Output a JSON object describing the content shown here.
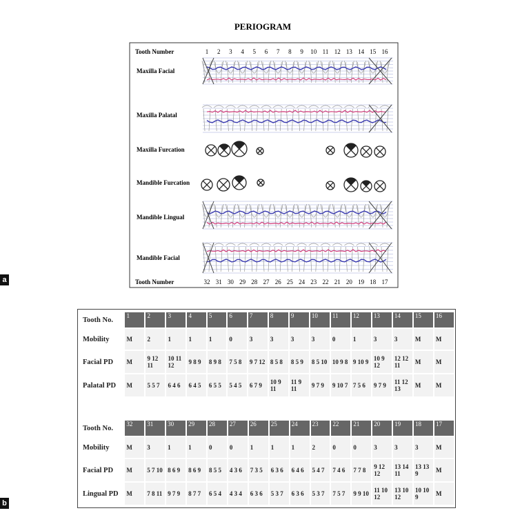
{
  "figure": {
    "label_a": "a",
    "label_b": "b"
  },
  "periogram": {
    "title": "PERIOGRAM",
    "top_label": "Tooth Number",
    "bottom_label": "Tooth Number",
    "upper_teeth": [
      "1",
      "2",
      "3",
      "4",
      "5",
      "6",
      "7",
      "8",
      "9",
      "10",
      "11",
      "12",
      "13",
      "14",
      "15",
      "16"
    ],
    "lower_teeth": [
      "32",
      "31",
      "30",
      "29",
      "28",
      "27",
      "26",
      "25",
      "24",
      "23",
      "22",
      "21",
      "20",
      "19",
      "18",
      "17"
    ],
    "rows": [
      "Maxilla Facial",
      "Maxilla Palatal",
      "Maxilla Furcation",
      "Mandible Furcation",
      "Mandible Lingual",
      "Mandible Facial"
    ]
  },
  "tables": [
    {
      "header_label": "Tooth No.",
      "teeth": [
        "1",
        "2",
        "3",
        "4",
        "5",
        "6",
        "7",
        "8",
        "9",
        "10",
        "11",
        "12",
        "13",
        "14",
        "15",
        "16"
      ],
      "rows": [
        {
          "label": "Mobility",
          "cells": [
            "M",
            "2",
            "1",
            "1",
            "1",
            "0",
            "3",
            "3",
            "3",
            "3",
            "0",
            "1",
            "3",
            "3",
            "M",
            "M"
          ]
        },
        {
          "label": "Facial PD",
          "cells": [
            "M",
            "9 12 11",
            "10 11 12",
            "9 8 9",
            "8 9 8",
            "7 5 8",
            "9 7 12",
            "8 5 8",
            "8 5 9",
            "8 5 10",
            "10 9 8",
            "9 10 9",
            "10 9 12",
            "12 12 11",
            "M",
            "M"
          ]
        },
        {
          "label": "Palatal PD",
          "cells": [
            "M",
            "5 5 7",
            "6 4 6",
            "6 4 5",
            "6 5 5",
            "5 4 5",
            "6 7 9",
            "10 9 11",
            "11 9 11",
            "9 7 9",
            "9 10 7",
            "7 5 6",
            "9 7 9",
            "11 12 13",
            "M",
            "M"
          ]
        }
      ]
    },
    {
      "header_label": "Tooth No.",
      "teeth": [
        "32",
        "31",
        "30",
        "29",
        "28",
        "27",
        "26",
        "25",
        "24",
        "23",
        "22",
        "21",
        "20",
        "19",
        "18",
        "17"
      ],
      "rows": [
        {
          "label": "Mobility",
          "cells": [
            "M",
            "3",
            "1",
            "1",
            "0",
            "0",
            "1",
            "1",
            "1",
            "2",
            "0",
            "0",
            "3",
            "3",
            "3",
            "M"
          ]
        },
        {
          "label": "Facial PD",
          "cells": [
            "M",
            "5 7 10",
            "8 6 9",
            "8 6 9",
            "8 5 5",
            "4 3 6",
            "7 3 5",
            "6 3 6",
            "6 4 6",
            "5 4 7",
            "7 4 6",
            "7 7 8",
            "9 12 12",
            "13 14 11",
            "13 13 9",
            "M"
          ]
        },
        {
          "label": "Lingual PD",
          "cells": [
            "M",
            "7 8 11",
            "9 7 9",
            "8 7 7",
            "6 5 4",
            "4 3 4",
            "6 3 6",
            "5 3 7",
            "6 3 6",
            "5 3 7",
            "7 5 7",
            "9 9 10",
            "11 10 12",
            "13 10 12",
            "10 10 9",
            "M"
          ]
        }
      ]
    }
  ]
}
